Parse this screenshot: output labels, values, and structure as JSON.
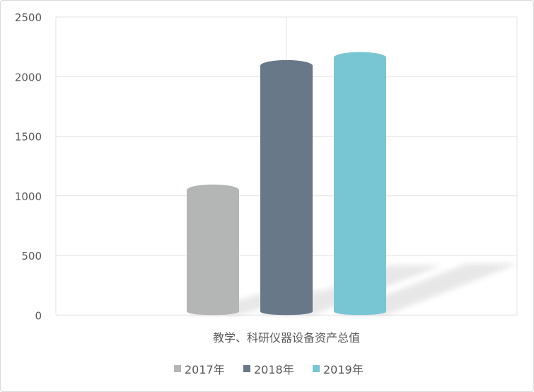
{
  "chart_data": {
    "type": "bar",
    "style": "3d-cylinder",
    "categories": [
      "教学、科研仪器设备资产总值"
    ],
    "series": [
      {
        "name": "2017年",
        "values": [
          1048
        ],
        "color": "#b4b5b5"
      },
      {
        "name": "2018年",
        "values": [
          2091
        ],
        "color": "#697889"
      },
      {
        "name": "2019年",
        "values": [
          2159
        ],
        "color": "#78c6d3"
      }
    ],
    "ylim": [
      0,
      2500
    ],
    "yticks": [
      "0",
      "500",
      "1000",
      "1500",
      "2000",
      "2500"
    ],
    "grid": true,
    "legend": "bottom"
  }
}
